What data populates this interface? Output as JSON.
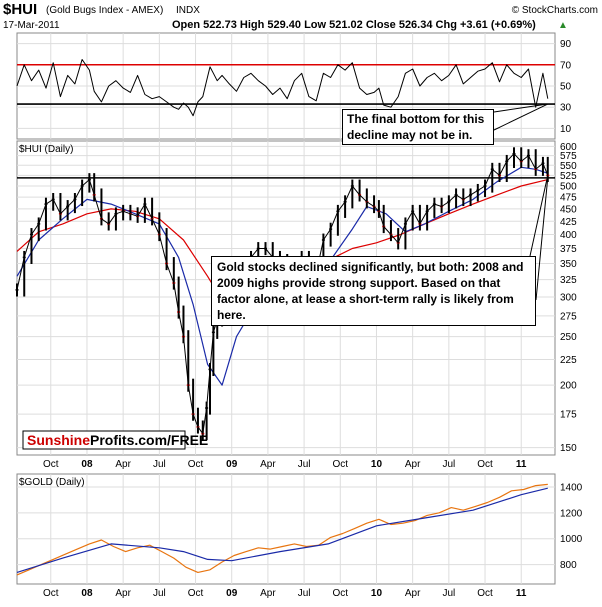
{
  "header": {
    "symbol": "$HUI",
    "name": "(Gold Bugs Index - AMEX)",
    "exchange": "INDX",
    "credit": "© StockCharts.com",
    "date": "17-Mar-2011",
    "ohlc": "Open 522.73  High 529.40  Low 521.02  Close 526.34  Chg +3.61 (+0.69%)",
    "ohlc_arrow": "▲"
  },
  "rsi_panel": {
    "ticks": [
      "90",
      "70",
      "50",
      "30",
      "10"
    ],
    "tick_values": [
      90,
      70,
      50,
      30,
      10
    ],
    "ylim": [
      0,
      100
    ],
    "overbought": 70,
    "oversold": 30,
    "support_level": 33,
    "annotation": "The final bottom for this decline may not be in."
  },
  "main_panel": {
    "label": "$HUI (Daily)",
    "ticks": [
      "600",
      "575",
      "550",
      "525",
      "500",
      "475",
      "450",
      "425",
      "400",
      "375",
      "350",
      "325",
      "300",
      "275",
      "250",
      "225",
      "200",
      "175",
      "150"
    ],
    "tick_values": [
      600,
      575,
      550,
      525,
      500,
      475,
      450,
      425,
      400,
      375,
      350,
      325,
      300,
      275,
      250,
      225,
      200,
      175,
      150
    ],
    "support_level": 519,
    "annotation": "Gold stocks declined significantly, but both: 2008 and 2009 highs provide strong support. Based on that factor alone, at lease a short-term rally is likely from here.",
    "brand_red": "Sunshine",
    "brand_black": "Profits.com/FREE"
  },
  "gold_panel": {
    "label": "$GOLD (Daily)",
    "ticks": [
      "1400",
      "1200",
      "1000",
      "800"
    ],
    "tick_values": [
      1400,
      1200,
      1000,
      800
    ]
  },
  "x_axis": {
    "labels": [
      "Oct",
      "08",
      "Apr",
      "Jul",
      "Oct",
      "09",
      "Apr",
      "Jul",
      "Oct",
      "10",
      "Apr",
      "Jul",
      "Oct",
      "11"
    ],
    "bold": [
      false,
      true,
      false,
      false,
      false,
      true,
      false,
      false,
      false,
      true,
      false,
      false,
      false,
      true
    ],
    "positions": [
      0.25,
      1.0,
      1.75,
      2.5,
      3.25,
      4.0,
      4.75,
      5.5,
      6.25,
      7.0,
      7.75,
      8.5,
      9.25,
      10.0
    ]
  },
  "chart_data": {
    "type": "line",
    "title": "$HUI (Gold Bugs Index - AMEX) INDX",
    "date": "17-Mar-2011",
    "x_unit": "quarters since Oct 2007",
    "xlim": [
      -0.45,
      10.7
    ],
    "series": [
      {
        "name": "$HUI (Daily)",
        "x": [
          -0.45,
          -0.3,
          -0.15,
          0.0,
          0.15,
          0.3,
          0.45,
          0.6,
          0.75,
          0.9,
          1.05,
          1.15,
          1.3,
          1.45,
          1.6,
          1.75,
          1.9,
          2.05,
          2.2,
          2.35,
          2.5,
          2.65,
          2.8,
          2.9,
          3.0,
          3.1,
          3.2,
          3.3,
          3.4,
          3.48,
          3.55,
          3.62,
          3.7,
          3.8,
          3.95,
          4.1,
          4.25,
          4.4,
          4.55,
          4.7,
          4.85,
          5.0,
          5.15,
          5.3,
          5.45,
          5.6,
          5.75,
          5.9,
          6.05,
          6.2,
          6.35,
          6.5,
          6.65,
          6.8,
          6.95,
          7.05,
          7.15,
          7.3,
          7.45,
          7.6,
          7.75,
          7.9,
          8.05,
          8.2,
          8.35,
          8.5,
          8.65,
          8.8,
          8.95,
          9.1,
          9.25,
          9.4,
          9.55,
          9.7,
          9.85,
          10.0,
          10.15,
          10.3,
          10.45,
          10.55
        ],
        "values": [
          310,
          360,
          400,
          420,
          460,
          470,
          440,
          455,
          470,
          500,
          515,
          480,
          430,
          420,
          440,
          445,
          440,
          435,
          460,
          430,
          400,
          350,
          320,
          280,
          250,
          200,
          175,
          165,
          160,
          180,
          215,
          255,
          270,
          280,
          300,
          295,
          320,
          360,
          375,
          375,
          360,
          355,
          340,
          345,
          360,
          340,
          335,
          390,
          410,
          445,
          465,
          500,
          480,
          465,
          455,
          445,
          415,
          400,
          385,
          420,
          445,
          420,
          445,
          460,
          455,
          465,
          480,
          470,
          480,
          490,
          500,
          540,
          525,
          560,
          580,
          560,
          575,
          540,
          555,
          525
        ]
      },
      {
        "name": "$GOLD (Daily)",
        "x": [
          -0.45,
          -0.2,
          0.05,
          0.3,
          0.55,
          0.8,
          1.05,
          1.3,
          1.55,
          1.8,
          2.05,
          2.3,
          2.55,
          2.8,
          3.05,
          3.3,
          3.55,
          3.8,
          4.05,
          4.3,
          4.55,
          4.8,
          5.05,
          5.3,
          5.55,
          5.8,
          6.05,
          6.3,
          6.55,
          6.8,
          7.05,
          7.3,
          7.55,
          7.8,
          8.05,
          8.3,
          8.55,
          8.8,
          9.05,
          9.3,
          9.55,
          9.8,
          10.05,
          10.3,
          10.55
        ],
        "values": [
          720,
          760,
          800,
          840,
          880,
          920,
          960,
          990,
          940,
          900,
          930,
          950,
          900,
          850,
          780,
          740,
          760,
          820,
          870,
          900,
          930,
          920,
          940,
          960,
          940,
          950,
          1010,
          1040,
          1080,
          1120,
          1150,
          1110,
          1120,
          1140,
          1180,
          1200,
          1240,
          1220,
          1250,
          1280,
          1320,
          1370,
          1380,
          1410,
          1420
        ]
      },
      {
        "name": "RSI",
        "x": [
          -0.45,
          -0.3,
          -0.15,
          0.0,
          0.15,
          0.3,
          0.45,
          0.6,
          0.75,
          0.9,
          1.05,
          1.15,
          1.3,
          1.45,
          1.6,
          1.75,
          1.9,
          2.05,
          2.2,
          2.35,
          2.5,
          2.65,
          2.8,
          2.9,
          3.0,
          3.1,
          3.2,
          3.3,
          3.4,
          3.48,
          3.55,
          3.62,
          3.7,
          3.8,
          3.95,
          4.1,
          4.25,
          4.4,
          4.55,
          4.7,
          4.85,
          5.0,
          5.15,
          5.3,
          5.45,
          5.6,
          5.75,
          5.9,
          6.05,
          6.2,
          6.35,
          6.5,
          6.65,
          6.8,
          6.95,
          7.05,
          7.15,
          7.3,
          7.45,
          7.6,
          7.75,
          7.9,
          8.05,
          8.2,
          8.35,
          8.5,
          8.65,
          8.8,
          8.95,
          9.1,
          9.25,
          9.4,
          9.55,
          9.7,
          9.85,
          10.0,
          10.15,
          10.3,
          10.45,
          10.55
        ],
        "values": [
          50,
          70,
          55,
          65,
          48,
          72,
          40,
          60,
          52,
          75,
          65,
          45,
          35,
          50,
          55,
          48,
          44,
          60,
          42,
          38,
          40,
          35,
          30,
          28,
          34,
          30,
          22,
          35,
          40,
          55,
          68,
          62,
          55,
          60,
          52,
          45,
          58,
          62,
          55,
          50,
          42,
          48,
          38,
          55,
          62,
          40,
          36,
          62,
          58,
          70,
          65,
          72,
          48,
          42,
          44,
          48,
          32,
          30,
          40,
          62,
          66,
          50,
          58,
          62,
          55,
          60,
          70,
          52,
          58,
          64,
          66,
          72,
          54,
          70,
          62,
          58,
          66,
          30,
          62,
          38
        ]
      }
    ],
    "moving_averages": [
      {
        "panel": "main",
        "x": [
          -0.45,
          0.0,
          0.5,
          1.0,
          1.5,
          2.0,
          2.5,
          3.0,
          3.5,
          4.0,
          4.5,
          5.0,
          5.5,
          6.0,
          6.5,
          7.0,
          7.5,
          8.0,
          8.5,
          9.0,
          9.5,
          10.0,
          10.55
        ],
        "values": [
          370,
          405,
          420,
          440,
          450,
          445,
          430,
          390,
          330,
          275,
          275,
          300,
          330,
          355,
          375,
          385,
          400,
          420,
          440,
          460,
          480,
          500,
          515
        ]
      },
      {
        "panel": "main",
        "x": [
          -0.45,
          0.0,
          0.5,
          1.0,
          1.5,
          2.0,
          2.5,
          2.9,
          3.2,
          3.5,
          3.8,
          4.1,
          4.5,
          5.0,
          5.5,
          6.0,
          6.5,
          6.8,
          7.2,
          7.6,
          8.0,
          8.5,
          9.0,
          9.5,
          10.0,
          10.3,
          10.55
        ],
        "values": [
          330,
          390,
          430,
          470,
          460,
          440,
          420,
          360,
          290,
          220,
          200,
          250,
          290,
          330,
          345,
          350,
          410,
          455,
          440,
          405,
          420,
          445,
          470,
          510,
          545,
          540,
          530
        ]
      },
      {
        "panel": "gold",
        "x": [
          -0.45,
          0.5,
          1.5,
          2.5,
          3.0,
          3.5,
          4.0,
          5.0,
          6.0,
          7.0,
          8.0,
          9.0,
          10.0,
          10.55
        ],
        "values": [
          740,
          850,
          960,
          930,
          900,
          840,
          830,
          900,
          960,
          1100,
          1160,
          1220,
          1340,
          1390
        ]
      }
    ],
    "horizontal_lines": [
      {
        "panel": "main",
        "value": 519
      },
      {
        "panel": "rsi",
        "value": 70
      },
      {
        "panel": "rsi",
        "value": 33
      }
    ]
  }
}
